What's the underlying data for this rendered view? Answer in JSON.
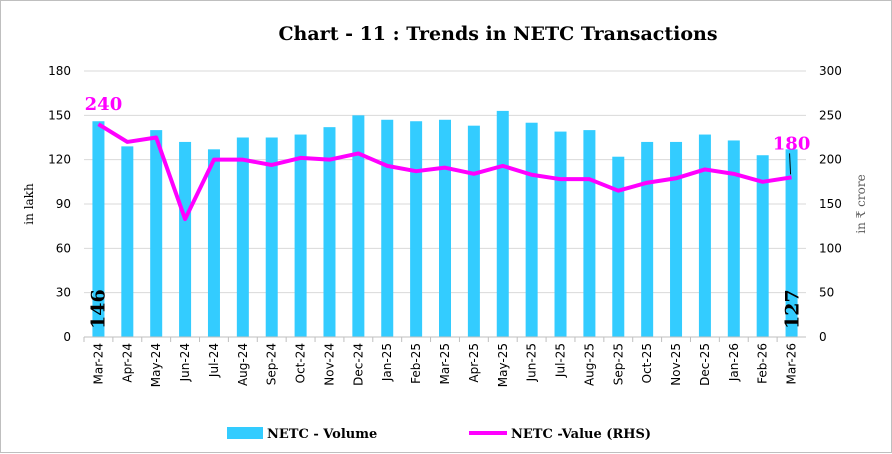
{
  "chart_data": {
    "type": "bar+line",
    "title": "Chart - 11 : Trends in NETC Transactions",
    "ylabel_left": "in lakh",
    "ylabel_right": "in ₹ crore",
    "ylim_left": [
      0,
      180
    ],
    "yticks_left": [
      0,
      30,
      60,
      90,
      120,
      150,
      180
    ],
    "ylim_right": [
      0,
      300
    ],
    "yticks_right": [
      0,
      50,
      100,
      150,
      200,
      250,
      300
    ],
    "grid": true,
    "legend_position": "bottom",
    "categories": [
      "Mar-24",
      "Apr-24",
      "May-24",
      "Jun-24",
      "Jul-24",
      "Aug-24",
      "Sep-24",
      "Oct-24",
      "Nov-24",
      "Dec-24",
      "Jan-25",
      "Feb-25",
      "Mar-25",
      "Apr-25",
      "May-25",
      "Jun-25",
      "Jul-25",
      "Aug-25",
      "Sep-25",
      "Oct-25",
      "Nov-25",
      "Dec-25",
      "Jan-26",
      "Feb-26",
      "Mar-26"
    ],
    "series": [
      {
        "name": "NETC - Volume",
        "type": "bar",
        "axis": "left",
        "color": "#33ccff",
        "values": [
          146,
          129,
          140,
          132,
          127,
          135,
          135,
          137,
          142,
          150,
          147,
          146,
          147,
          143,
          153,
          145,
          139,
          140,
          122,
          132,
          132,
          137,
          133,
          123,
          127
        ],
        "data_labels": {
          "first": "146",
          "last": "127"
        }
      },
      {
        "name": "NETC -Value (RHS)",
        "type": "line",
        "axis": "right",
        "color": "#ff00ff",
        "values": [
          240,
          220,
          225,
          133,
          200,
          200,
          194,
          202,
          200,
          207,
          193,
          187,
          191,
          184,
          193,
          183,
          178,
          178,
          165,
          174,
          179,
          189,
          184,
          175,
          180
        ],
        "data_labels": {
          "first": "240",
          "last": "180"
        }
      }
    ]
  }
}
